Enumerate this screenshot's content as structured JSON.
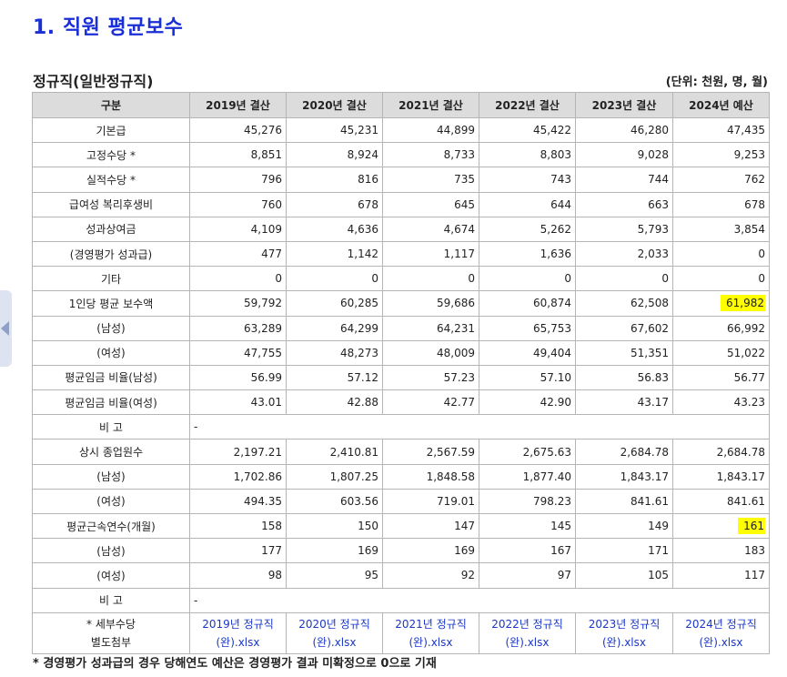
{
  "page": {
    "section_title": "1. 직원 평균보수",
    "sub_title": "정규직(일반정규직)",
    "unit": "(단위: 천원, 명, 월)",
    "footnote": "* 경영평가 성과급의 경우 당해연도 예산은 경영평가 결과 미확정으로 0으로 기재"
  },
  "table": {
    "headers": [
      "구분",
      "2019년 결산",
      "2020년 결산",
      "2021년 결산",
      "2022년 결산",
      "2023년 결산",
      "2024년 예산"
    ],
    "rows": [
      {
        "label": "기본급",
        "values": [
          "45,276",
          "45,231",
          "44,899",
          "45,422",
          "46,280",
          "47,435"
        ]
      },
      {
        "label": "고정수당 *",
        "values": [
          "8,851",
          "8,924",
          "8,733",
          "8,803",
          "9,028",
          "9,253"
        ]
      },
      {
        "label": "실적수당 *",
        "values": [
          "796",
          "816",
          "735",
          "743",
          "744",
          "762"
        ]
      },
      {
        "label": "급여성 복리후생비",
        "values": [
          "760",
          "678",
          "645",
          "644",
          "663",
          "678"
        ]
      },
      {
        "label": "성과상여금",
        "values": [
          "4,109",
          "4,636",
          "4,674",
          "5,262",
          "5,793",
          "3,854"
        ]
      },
      {
        "label": "(경영평가 성과급)",
        "values": [
          "477",
          "1,142",
          "1,117",
          "1,636",
          "2,033",
          "0"
        ]
      },
      {
        "label": "기타",
        "values": [
          "0",
          "0",
          "0",
          "0",
          "0",
          "0"
        ]
      },
      {
        "label": "1인당 평균 보수액",
        "values": [
          "59,792",
          "60,285",
          "59,686",
          "60,874",
          "62,508",
          "61,982"
        ]
      },
      {
        "label": "(남성)",
        "values": [
          "63,289",
          "64,299",
          "64,231",
          "65,753",
          "67,602",
          "66,992"
        ]
      },
      {
        "label": "(여성)",
        "values": [
          "47,755",
          "48,273",
          "48,009",
          "49,404",
          "51,351",
          "51,022"
        ]
      },
      {
        "label": "평균임금 비율(남성)",
        "values": [
          "56.99",
          "57.12",
          "57.23",
          "57.10",
          "56.83",
          "56.77"
        ]
      },
      {
        "label": "평균임금 비율(여성)",
        "values": [
          "43.01",
          "42.88",
          "42.77",
          "42.90",
          "43.17",
          "43.23"
        ]
      },
      {
        "label": "비 고",
        "note": "-"
      },
      {
        "label": "상시 종업원수",
        "values": [
          "2,197.21",
          "2,410.81",
          "2,567.59",
          "2,675.63",
          "2,684.78",
          "2,684.78"
        ]
      },
      {
        "label": "(남성)",
        "values": [
          "1,702.86",
          "1,807.25",
          "1,848.58",
          "1,877.40",
          "1,843.17",
          "1,843.17"
        ]
      },
      {
        "label": "(여성)",
        "values": [
          "494.35",
          "603.56",
          "719.01",
          "798.23",
          "841.61",
          "841.61"
        ]
      },
      {
        "label": "평균근속연수(개월)",
        "values": [
          "158",
          "150",
          "147",
          "145",
          "149",
          "161"
        ]
      },
      {
        "label": "(남성)",
        "values": [
          "177",
          "169",
          "169",
          "167",
          "171",
          "183"
        ]
      },
      {
        "label": "(여성)",
        "values": [
          "98",
          "95",
          "92",
          "97",
          "105",
          "117"
        ]
      },
      {
        "label": "비 고",
        "note": "-"
      }
    ],
    "attachment": {
      "label_line1": "* 세부수당",
      "label_line2": "별도첨부",
      "files": [
        {
          "line1": "2019년 정규직",
          "line2": "(완).xlsx"
        },
        {
          "line1": "2020년 정규직",
          "line2": "(완).xlsx"
        },
        {
          "line1": "2021년 정규직",
          "line2": "(완).xlsx"
        },
        {
          "line1": "2022년 정규직",
          "line2": "(완).xlsx"
        },
        {
          "line1": "2023년 정규직",
          "line2": "(완).xlsx"
        },
        {
          "line1": "2024년 정규직",
          "line2": "(완).xlsx"
        }
      ]
    }
  },
  "highlights": {
    "color": "#ffff00",
    "cells": [
      "1인당 평균 보수액 / 2024년 예산",
      "평균근속연수(개월) / 2024년 예산"
    ]
  }
}
